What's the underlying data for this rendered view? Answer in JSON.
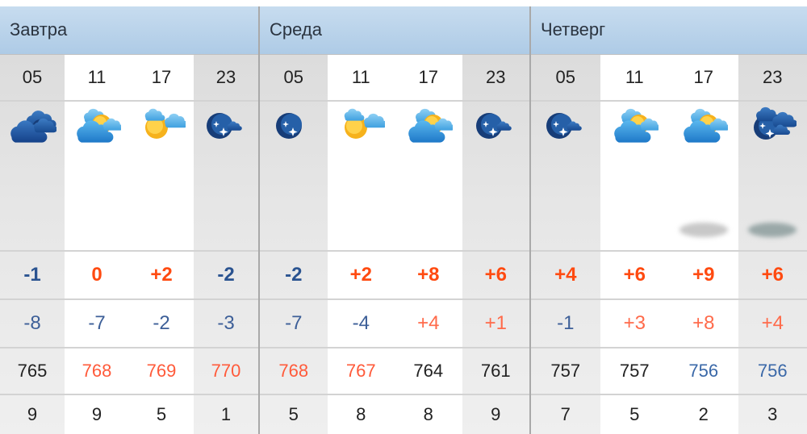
{
  "days": [
    {
      "title": "Завтра",
      "cols": [
        {
          "hour": "05",
          "shade": "gray",
          "icon": "heavy-clouds-night",
          "temp": "-1",
          "feels": "-8",
          "pressure": "765",
          "wind": "9"
        },
        {
          "hour": "11",
          "shade": "white",
          "icon": "partly-cloudy-day",
          "temp": "0",
          "feels": "-7",
          "pressure": "768",
          "wind": "9"
        },
        {
          "hour": "17",
          "shade": "white",
          "icon": "sun-light-clouds",
          "temp": "+2",
          "feels": "-2",
          "pressure": "769",
          "wind": "5"
        },
        {
          "hour": "23",
          "shade": "gray",
          "icon": "night-small-cloud",
          "temp": "-2",
          "feels": "-3",
          "pressure": "770",
          "wind": "1"
        }
      ]
    },
    {
      "title": "Среда",
      "cols": [
        {
          "hour": "05",
          "shade": "gray",
          "icon": "clear-night",
          "temp": "-2",
          "feels": "-7",
          "pressure": "768",
          "wind": "5"
        },
        {
          "hour": "11",
          "shade": "white",
          "icon": "sun-light-clouds",
          "temp": "+2",
          "feels": "-4",
          "pressure": "767",
          "wind": "8"
        },
        {
          "hour": "17",
          "shade": "white",
          "icon": "partly-cloudy-day",
          "temp": "+8",
          "feels": "+4",
          "pressure": "764",
          "wind": "8"
        },
        {
          "hour": "23",
          "shade": "gray",
          "icon": "night-small-cloud",
          "temp": "+6",
          "feels": "+1",
          "pressure": "761",
          "wind": "9"
        }
      ]
    },
    {
      "title": "Четверг",
      "cols": [
        {
          "hour": "05",
          "shade": "gray",
          "icon": "night-small-cloud",
          "temp": "+4",
          "feels": "-1",
          "pressure": "757",
          "wind": "7"
        },
        {
          "hour": "11",
          "shade": "white",
          "icon": "partly-cloudy-day",
          "temp": "+6",
          "feels": "+3",
          "pressure": "757",
          "wind": "5"
        },
        {
          "hour": "17",
          "shade": "white",
          "icon": "partly-cloudy-day",
          "temp": "+9",
          "feels": "+8",
          "pressure": "756",
          "wind": "2",
          "precip": "light"
        },
        {
          "hour": "23",
          "shade": "gray",
          "icon": "cloudy-night",
          "temp": "+6",
          "feels": "+4",
          "pressure": "756",
          "wind": "3",
          "precip": "light"
        }
      ]
    }
  ],
  "colors": {
    "header": "#b7d2ea",
    "warm": "#ff4a10",
    "cold": "#2a5390",
    "pressure_high": "#ff5a3a",
    "pressure_low": "#3a68a8"
  }
}
